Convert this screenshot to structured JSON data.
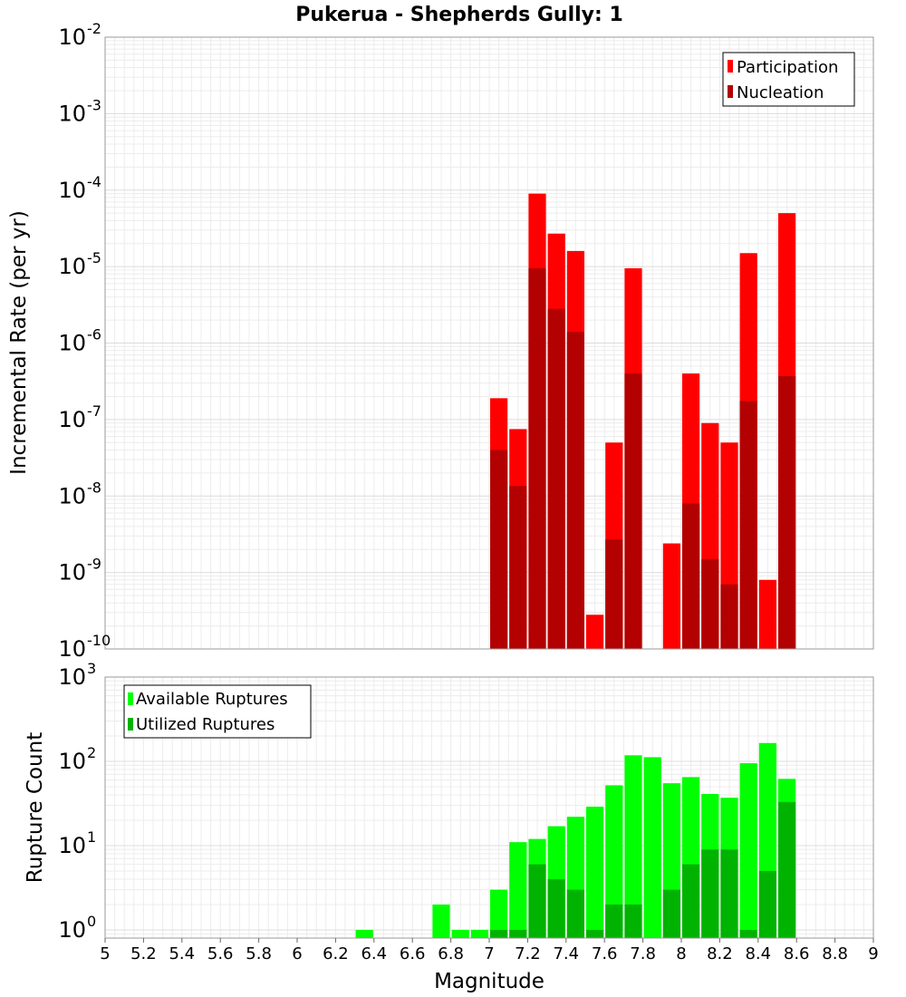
{
  "chart_data": [
    {
      "type": "bar",
      "title": "Pukerua - Shepherds Gully: 1",
      "ylabel": "Incremental Rate (per yr)",
      "yscale": "log",
      "ylim": [
        1e-10,
        0.01
      ],
      "xlim": [
        5,
        9
      ],
      "legend_position": "top-right",
      "grid": true,
      "y_tick_bases": [
        "10",
        "10",
        "10",
        "10",
        "10",
        "10",
        "10",
        "10",
        "10"
      ],
      "y_tick_exponents": [
        "-10",
        "-9",
        "-8",
        "-7",
        "-6",
        "-5",
        "-4",
        "-3",
        "-2"
      ],
      "series": [
        {
          "name": "Participation",
          "color": "#ff0000",
          "x": [
            7.0,
            7.1,
            7.2,
            7.3,
            7.4,
            7.5,
            7.6,
            7.7,
            7.9,
            8.0,
            8.1,
            8.2,
            8.3,
            8.4,
            8.5
          ],
          "values": [
            1.9e-07,
            7.5e-08,
            9e-05,
            2.7e-05,
            1.6e-05,
            2.8e-10,
            5e-08,
            9.5e-06,
            2.4e-09,
            4e-07,
            9e-08,
            5e-08,
            1.5e-05,
            8e-10,
            5e-05
          ]
        },
        {
          "name": "Nucleation",
          "color": "#b30000",
          "x": [
            7.0,
            7.1,
            7.2,
            7.3,
            7.4,
            7.6,
            7.7,
            8.0,
            8.1,
            8.2,
            8.3,
            8.5
          ],
          "values": [
            4e-08,
            1.35e-08,
            9.5e-06,
            2.8e-06,
            1.4e-06,
            2.7e-09,
            4e-07,
            8e-09,
            1.5e-09,
            7e-10,
            1.75e-07,
            3.7e-07
          ]
        }
      ]
    },
    {
      "type": "bar",
      "xlabel": "Magnitude",
      "ylabel": "Rupture Count",
      "yscale": "log",
      "ylim": [
        0.8,
        1000
      ],
      "xlim": [
        5,
        9
      ],
      "legend_position": "top-left",
      "grid": true,
      "y_tick_bases": [
        "10",
        "10",
        "10",
        "10"
      ],
      "y_tick_exponents": [
        "0",
        "1",
        "2",
        "3"
      ],
      "x_tick_labels": [
        "5",
        "5.2",
        "5.4",
        "5.6",
        "5.8",
        "6",
        "6.2",
        "6.4",
        "6.6",
        "6.8",
        "7",
        "7.2",
        "7.4",
        "7.6",
        "7.8",
        "8",
        "8.2",
        "8.4",
        "8.6",
        "8.8",
        "9"
      ],
      "series": [
        {
          "name": "Available Ruptures",
          "color": "#00ff00",
          "x": [
            6.3,
            6.7,
            6.8,
            6.9,
            7.0,
            7.1,
            7.2,
            7.3,
            7.4,
            7.5,
            7.6,
            7.7,
            7.8,
            7.9,
            8.0,
            8.1,
            8.2,
            8.3,
            8.4,
            8.5
          ],
          "values": [
            1,
            2,
            1,
            1,
            3,
            11,
            12,
            17,
            22,
            29,
            52,
            118,
            112,
            55,
            65,
            41,
            37,
            95,
            165,
            62
          ]
        },
        {
          "name": "Utilized Ruptures",
          "color": "#00b300",
          "x": [
            7.0,
            7.1,
            7.2,
            7.3,
            7.4,
            7.5,
            7.6,
            7.7,
            7.9,
            8.0,
            8.1,
            8.2,
            8.3,
            8.4,
            8.5
          ],
          "values": [
            1,
            1,
            6,
            4,
            3,
            1,
            2,
            2,
            3,
            6,
            9,
            9,
            1,
            5,
            33
          ]
        }
      ]
    }
  ]
}
